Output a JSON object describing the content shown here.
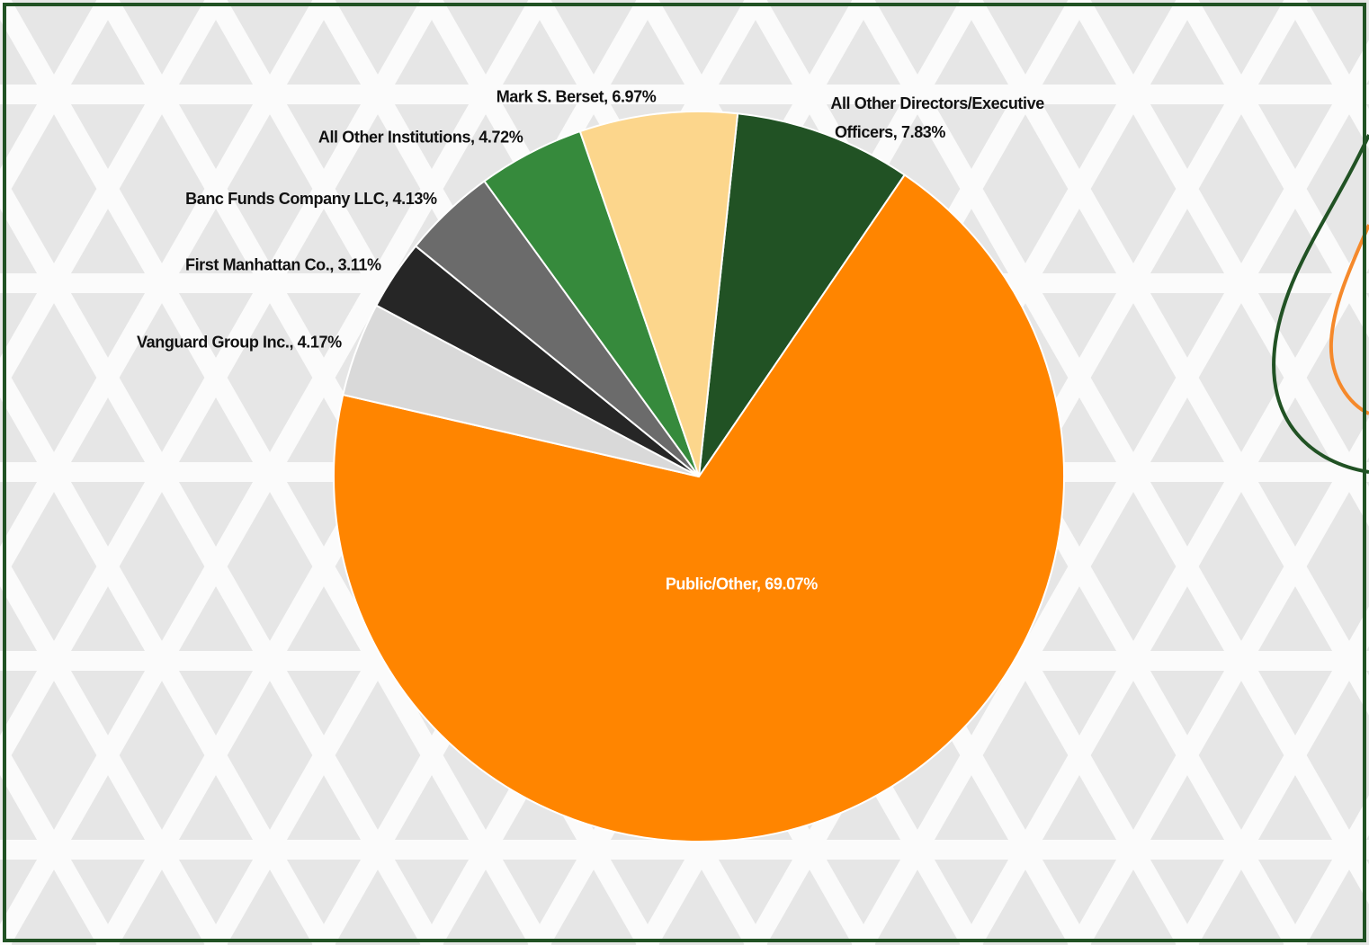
{
  "chart_data": {
    "type": "pie",
    "values": [
      7.83,
      69.07,
      4.17,
      3.11,
      4.13,
      4.72,
      6.97
    ],
    "value_labels": [
      "All Other Directors/Executive Officers, 7.83%",
      "Public/Other, 69.07%",
      "Vanguard Group Inc., 4.17%",
      "First Manhattan Co., 3.11%",
      "Banc Funds Company LLC, 4.13%",
      "All Other Institutions, 4.72%",
      "Mark S. Berset, 6.97%"
    ],
    "colors": [
      "#215224",
      "#ff8500",
      "#d9d9d9",
      "#262626",
      "#6b6b6b",
      "#368a3c",
      "#fcd68c"
    ]
  }
}
